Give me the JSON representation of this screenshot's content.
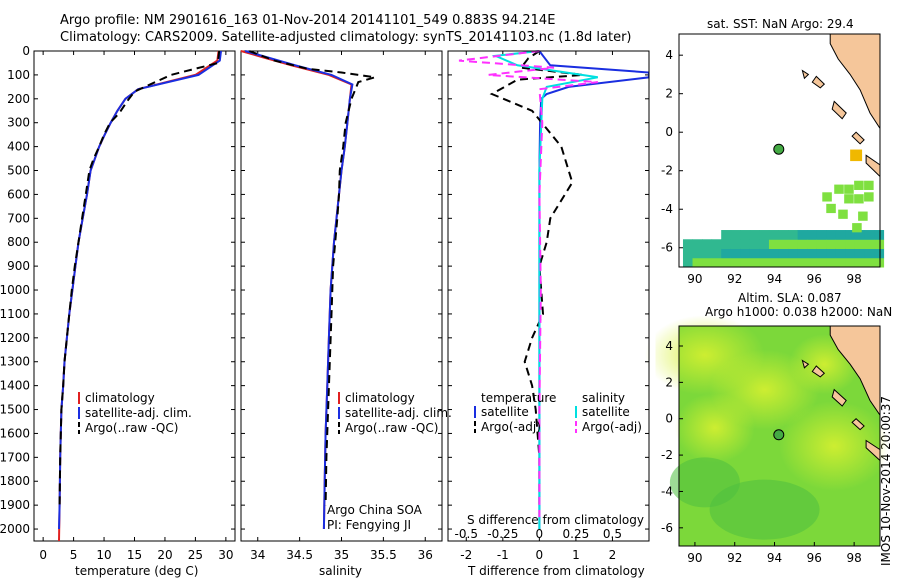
{
  "header": {
    "line1": "Argo profile: NM 2901616_163 01-Nov-2014 20141101_549 0.883S 94.214E",
    "line2": "Climatology: CARS2009. Satellite-adjusted climatology: synTS_20141103.nc (1.8d later)"
  },
  "depth_ticks": [
    "0",
    "100",
    "200",
    "300",
    "400",
    "500",
    "600",
    "700",
    "800",
    "900",
    "1000",
    "1100",
    "1200",
    "1300",
    "1400",
    "1500",
    "1600",
    "1700",
    "1800",
    "1900",
    "2000"
  ],
  "colors": {
    "climatology": "#e02020",
    "satellite": "#1a2ee0",
    "argo": "#000000",
    "sal_satellite": "#00e0e0",
    "sal_argo": "#ff30ff",
    "land": "#f5c69a",
    "sst_green": "#7fe040",
    "sst_teal": "#30b890",
    "sst_orange": "#f0b800",
    "sla_green": "#7cd83a",
    "sla_yellow": "#c8ef30",
    "profile_marker": "#44aa44"
  },
  "chart_data": [
    {
      "type": "line",
      "id": "temperature",
      "xlabel": "temperature (deg C)",
      "xticks": [
        "0",
        "5",
        "10",
        "15",
        "20",
        "25",
        "30"
      ],
      "xlim": [
        -1.5,
        31.5
      ],
      "ylim": [
        0,
        2050
      ],
      "legend": [
        "climatology",
        "satellite-adj. clim.",
        "Argo(..raw -QC)"
      ],
      "series": [
        {
          "name": "climatology",
          "x": [
            28.8,
            28.6,
            25,
            15.6,
            13.5,
            12.2,
            11.1,
            10.1,
            9.2,
            8.5,
            7.8,
            7.2,
            6.5,
            5.8,
            5.3,
            4.8,
            4.3,
            3.9,
            3.5,
            3.3,
            3.0,
            2.8,
            2.7,
            2.6
          ],
          "y": [
            0,
            40,
            100,
            160,
            200,
            250,
            300,
            350,
            400,
            450,
            500,
            600,
            700,
            800,
            900,
            1000,
            1100,
            1200,
            1300,
            1400,
            1500,
            1700,
            1900,
            2050
          ]
        },
        {
          "name": "satellite-adj. clim.",
          "x": [
            29.2,
            29.0,
            25.5,
            15.6,
            13.5,
            12.2,
            11.1,
            10.1,
            9.2,
            8.5,
            7.8,
            7.2,
            6.5,
            5.8,
            5.3,
            4.8,
            4.3,
            3.9,
            3.5,
            3.3,
            3.0,
            2.8,
            2.7,
            2.6
          ],
          "y": [
            0,
            40,
            100,
            160,
            200,
            250,
            300,
            350,
            400,
            450,
            500,
            600,
            700,
            800,
            900,
            1000,
            1100,
            1200,
            1300,
            1400,
            1500,
            1700,
            1900,
            2000
          ]
        },
        {
          "name": "Argo(..raw -QC)",
          "x": [
            28.9,
            28.7,
            21,
            15.0,
            13.8,
            12.5,
            11.0,
            10.0,
            9.2,
            8.3,
            7.6,
            7.0,
            6.4,
            5.8,
            5.2,
            4.7,
            4.3,
            3.9,
            3.5,
            3.3,
            3.0,
            2.8,
            2.7
          ],
          "y": [
            0,
            50,
            100,
            170,
            210,
            260,
            300,
            350,
            400,
            450,
            500,
            600,
            700,
            800,
            900,
            1000,
            1100,
            1200,
            1300,
            1400,
            1500,
            1700,
            1900
          ]
        }
      ]
    },
    {
      "type": "line",
      "id": "salinity",
      "xlabel": "salinity",
      "xticks": [
        "34",
        "34.5",
        "35",
        "35.5",
        "36"
      ],
      "xlim": [
        33.8,
        36.2
      ],
      "ylim": [
        0,
        2050
      ],
      "legend": [
        "climatology",
        "satellite-adj. clim.",
        "Argo(..raw -QC)"
      ],
      "annotations": [
        "Argo China SOA",
        "PI: Fengying JI"
      ],
      "series": [
        {
          "name": "climatology",
          "x": [
            33.8,
            34.05,
            34.4,
            34.85,
            35.12,
            35.1,
            35.07,
            35.04,
            35.0,
            34.97,
            34.94,
            34.91,
            34.89,
            34.87,
            34.85,
            34.83,
            34.81,
            34.8,
            34.79
          ],
          "y": [
            0,
            25,
            60,
            100,
            140,
            200,
            300,
            400,
            500,
            600,
            700,
            800,
            900,
            1000,
            1200,
            1400,
            1600,
            1800,
            2000
          ]
        },
        {
          "name": "satellite-adj. clim.",
          "x": [
            33.85,
            34.1,
            34.45,
            34.88,
            35.13,
            35.1,
            35.07,
            35.04,
            35.0,
            34.97,
            34.94,
            34.91,
            34.89,
            34.87,
            34.85,
            34.83,
            34.81,
            34.8,
            34.79
          ],
          "y": [
            0,
            25,
            60,
            100,
            140,
            200,
            300,
            400,
            500,
            600,
            700,
            800,
            900,
            1000,
            1200,
            1400,
            1600,
            1800,
            2000
          ]
        },
        {
          "name": "Argo(..raw -QC)",
          "x": [
            33.9,
            34.2,
            34.6,
            35.0,
            35.4,
            35.2,
            35.12,
            35.05,
            35.02,
            34.98,
            34.97,
            34.95,
            34.9,
            34.88,
            34.86,
            34.84,
            34.82,
            34.81
          ],
          "y": [
            0,
            40,
            75,
            90,
            110,
            130,
            200,
            300,
            400,
            500,
            600,
            700,
            900,
            1100,
            1300,
            1500,
            1700,
            1900
          ]
        }
      ]
    },
    {
      "type": "line",
      "id": "difference",
      "xlabel": "T difference from climatology",
      "xlabel_top": "S difference from climatology",
      "xticks": [
        "-2",
        "-1",
        "0",
        "1",
        "2"
      ],
      "xticks_sal": [
        "-0.5",
        "-0.25",
        "0",
        "0.25",
        "0.5"
      ],
      "xlim": [
        -2.5,
        3.0
      ],
      "ylim": [
        0,
        2050
      ],
      "legend_headers": [
        "temperature",
        "salinity"
      ],
      "legend": [
        "satellite",
        "Argo(-adj)",
        "satellite",
        "Argo(-adj)"
      ],
      "series": [
        {
          "name": "temperature satellite",
          "x": [
            0,
            0.1,
            0.3,
            3.0,
            3.0,
            0.8,
            0.2,
            0.05,
            0.02,
            0.0,
            0.0,
            0.0,
            0.0
          ],
          "y": [
            0,
            20,
            60,
            90,
            110,
            150,
            180,
            200,
            300,
            500,
            1000,
            1500,
            2000
          ]
        },
        {
          "name": "temperature Argo(-adj)",
          "x": [
            0,
            -0.3,
            -0.5,
            1.2,
            -0.6,
            -1.3,
            -0.2,
            0.6,
            0.9,
            0.3,
            0.2,
            0.0,
            0.1,
            -0.2,
            -0.4,
            -0.2,
            -0.1,
            0.0,
            0.0
          ],
          "y": [
            0,
            30,
            70,
            100,
            120,
            180,
            250,
            400,
            550,
            700,
            800,
            900,
            1100,
            1200,
            1300,
            1400,
            1500,
            1700,
            1900
          ]
        },
        {
          "name": "salinity satellite",
          "x": [
            0,
            -0.3,
            -0.15,
            0.4,
            0.05,
            0.02,
            0.0,
            0.0,
            0.0
          ],
          "y": [
            0,
            20,
            60,
            110,
            150,
            200,
            500,
            1000,
            2000
          ]
        },
        {
          "name": "salinity Argo(-adj)",
          "x": [
            0,
            -0.55,
            0.1,
            -0.35,
            0.4,
            0.0,
            0.02,
            0.0,
            0.01,
            0.0,
            0.0
          ],
          "y": [
            0,
            40,
            70,
            100,
            130,
            160,
            300,
            600,
            1000,
            1500,
            1950
          ]
        }
      ]
    },
    {
      "type": "heatmap",
      "id": "sst_map",
      "title": "sat. SST: NaN Argo: 29.4",
      "xticks": [
        "90",
        "92",
        "94",
        "96",
        "98"
      ],
      "yticks": [
        "4",
        "2",
        "0",
        "-2",
        "-4",
        "-6"
      ],
      "xlim": [
        89.2,
        99.3
      ],
      "ylim": [
        -7.0,
        5.1
      ],
      "profile": {
        "lon": 94.214,
        "lat": -0.883
      }
    },
    {
      "type": "heatmap",
      "id": "sla_map",
      "title": "Altim. SLA: 0.087",
      "subtitle": "Argo h1000: 0.038 h2000: NaN",
      "xticks": [
        "90",
        "92",
        "94",
        "96",
        "98"
      ],
      "yticks": [
        "4",
        "2",
        "0",
        "-2",
        "-4",
        "-6"
      ],
      "xlim": [
        89.2,
        99.3
      ],
      "ylim": [
        -7.0,
        5.1
      ],
      "profile": {
        "lon": 94.214,
        "lat": -0.883
      }
    }
  ],
  "stamp": "IMOS 10-Nov-2014 20:00:37"
}
